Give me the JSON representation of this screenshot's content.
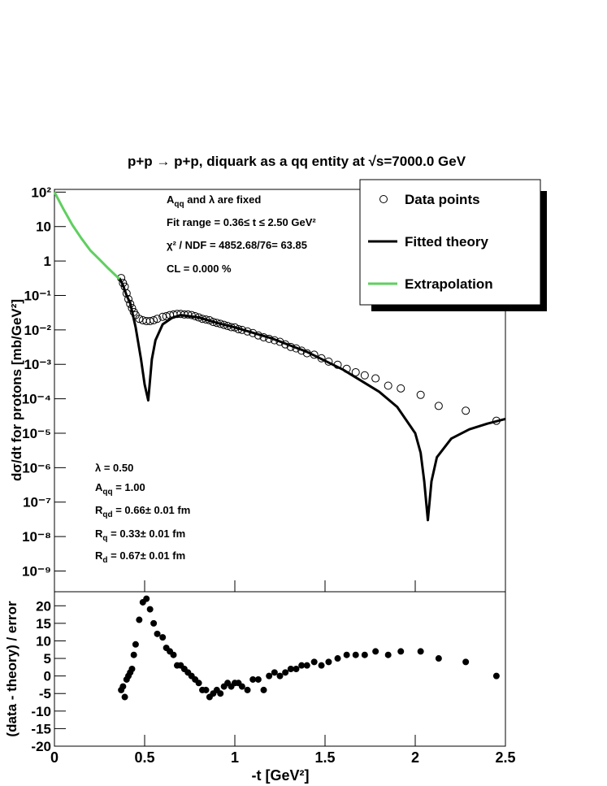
{
  "chart_data": [
    {
      "type": "line",
      "title": "p+p → p+p, diquark as a qq entity at √s=7000.0 GeV",
      "y_label": "dσ/dt for protons [mb/GeV²]",
      "log_y": true,
      "xlim": [
        0,
        2.5
      ],
      "xticks": [
        0,
        0.5,
        1,
        1.5,
        2,
        2.5
      ],
      "ylim": [
        2.5e-10,
        120
      ],
      "yticks": [
        {
          "value": 1e-09,
          "label": "10⁻⁹"
        },
        {
          "value": 1e-08,
          "label": "10⁻⁸"
        },
        {
          "value": 1e-07,
          "label": "10⁻⁷"
        },
        {
          "value": 1e-06,
          "label": "10⁻⁶"
        },
        {
          "value": 1e-05,
          "label": "10⁻⁵"
        },
        {
          "value": 0.0001,
          "label": "10⁻⁴"
        },
        {
          "value": 0.001,
          "label": "10⁻³"
        },
        {
          "value": 0.01,
          "label": "10⁻²"
        },
        {
          "value": 0.1,
          "label": "10⁻¹"
        },
        1,
        10,
        {
          "value": 100,
          "label": "10²"
        }
      ],
      "legend": "upper right",
      "series": [
        {
          "name": "Data points",
          "color": "#000000",
          "marker": "open-circle",
          "x": [
            0.37,
            0.38,
            0.39,
            0.4,
            0.41,
            0.42,
            0.43,
            0.44,
            0.45,
            0.47,
            0.49,
            0.51,
            0.53,
            0.55,
            0.57,
            0.6,
            0.62,
            0.64,
            0.66,
            0.68,
            0.7,
            0.72,
            0.74,
            0.76,
            0.78,
            0.8,
            0.82,
            0.84,
            0.86,
            0.88,
            0.9,
            0.92,
            0.94,
            0.96,
            0.98,
            1.0,
            1.02,
            1.04,
            1.07,
            1.1,
            1.13,
            1.16,
            1.19,
            1.22,
            1.25,
            1.28,
            1.31,
            1.34,
            1.37,
            1.4,
            1.44,
            1.48,
            1.52,
            1.57,
            1.62,
            1.67,
            1.72,
            1.78,
            1.85,
            1.92,
            2.03,
            2.13,
            2.28,
            2.45
          ],
          "values": [
            0.32,
            0.23,
            0.18,
            0.115,
            0.078,
            0.057,
            0.043,
            0.033,
            0.027,
            0.021,
            0.019,
            0.018,
            0.018,
            0.019,
            0.021,
            0.024,
            0.025,
            0.027,
            0.028,
            0.029,
            0.029,
            0.028,
            0.028,
            0.027,
            0.025,
            0.023,
            0.021,
            0.02,
            0.019,
            0.017,
            0.016,
            0.015,
            0.014,
            0.013,
            0.012,
            0.0118,
            0.0105,
            0.01,
            0.009,
            0.0081,
            0.0069,
            0.0061,
            0.0055,
            0.005,
            0.0045,
            0.0038,
            0.0032,
            0.0029,
            0.0025,
            0.0021,
            0.0019,
            0.0015,
            0.0012,
            0.00097,
            0.00074,
            0.00059,
            0.00048,
            0.00039,
            0.00024,
            0.0002,
            0.00013,
            6.2e-05,
            4.5e-05,
            2.3e-05
          ]
        },
        {
          "name": "Fitted theory",
          "color": "#000000",
          "x": [
            0.36,
            0.38,
            0.4,
            0.42,
            0.45,
            0.48,
            0.5,
            0.52,
            0.54,
            0.56,
            0.6,
            0.65,
            0.7,
            0.8,
            0.9,
            1.0,
            1.2,
            1.4,
            1.6,
            1.8,
            1.9,
            2.0,
            2.03,
            2.05,
            2.07,
            2.09,
            2.12,
            2.2,
            2.3,
            2.4,
            2.5
          ],
          "values": [
            0.32,
            0.2,
            0.1,
            0.06,
            0.012,
            0.0014,
            0.00026,
            9e-05,
            0.0014,
            0.005,
            0.0145,
            0.022,
            0.027,
            0.023,
            0.016,
            0.0118,
            0.0058,
            0.0023,
            0.0007,
            0.00016,
            5.8e-05,
            1e-05,
            2.7e-06,
            4e-07,
            3e-08,
            4e-07,
            2e-06,
            7e-06,
            1.3e-05,
            1.9e-05,
            2.6e-05
          ]
        },
        {
          "name": "Extrapolation",
          "color": "#5fcf5f",
          "x": [
            0,
            0.05,
            0.1,
            0.15,
            0.2,
            0.25,
            0.3,
            0.36
          ],
          "values": [
            100,
            32,
            11,
            4.5,
            2,
            1.1,
            0.6,
            0.3
          ]
        }
      ],
      "annotations": [
        [
          {
            "text": "A"
          },
          {
            "text": "qq",
            "sub": true
          },
          {
            "text": " and λ are fixed"
          }
        ],
        [
          {
            "text": "Fit range = 0.36≤ t ≤ 2.50 GeV²"
          }
        ],
        [
          {
            "text": "χ² / NDF = 4852.68/76= 63.85"
          }
        ],
        [
          {
            "text": "CL = 0.000 %"
          }
        ],
        [
          {
            "text": "λ = 0.50"
          }
        ],
        [
          {
            "text": "A"
          },
          {
            "text": "qq",
            "sub": true
          },
          {
            "text": " = 1.00"
          }
        ],
        [
          {
            "text": "R"
          },
          {
            "text": "qd",
            "sub": true
          },
          {
            "text": " = 0.66± 0.01 fm"
          }
        ],
        [
          {
            "text": "R"
          },
          {
            "text": "q",
            "sub": true
          },
          {
            "text": " = 0.33± 0.01 fm"
          }
        ],
        [
          {
            "text": "R"
          },
          {
            "text": "d",
            "sub": true
          },
          {
            "text": " = 0.67± 0.01 fm"
          }
        ]
      ]
    },
    {
      "type": "scatter",
      "x_label": "-t [GeV²]",
      "y_label": "(data - theory) / error",
      "xlim": [
        0,
        2.5
      ],
      "xticks": [
        0,
        0.5,
        1,
        1.5,
        2,
        2.5
      ],
      "ylim": [
        -20,
        24
      ],
      "yticks": [
        -20,
        -15,
        -10,
        -5,
        0,
        5,
        10,
        15,
        20
      ],
      "series": [
        {
          "color": "#000000",
          "marker": "filled-circle",
          "x": [
            0.37,
            0.38,
            0.39,
            0.4,
            0.41,
            0.42,
            0.43,
            0.44,
            0.45,
            0.47,
            0.49,
            0.51,
            0.53,
            0.55,
            0.57,
            0.6,
            0.62,
            0.64,
            0.66,
            0.68,
            0.7,
            0.72,
            0.74,
            0.76,
            0.78,
            0.8,
            0.82,
            0.84,
            0.86,
            0.88,
            0.9,
            0.92,
            0.94,
            0.96,
            0.98,
            1.0,
            1.02,
            1.04,
            1.07,
            1.1,
            1.13,
            1.16,
            1.19,
            1.22,
            1.25,
            1.28,
            1.31,
            1.34,
            1.37,
            1.4,
            1.44,
            1.48,
            1.52,
            1.57,
            1.62,
            1.67,
            1.72,
            1.78,
            1.85,
            1.92,
            2.03,
            2.13,
            2.28,
            2.45
          ],
          "values": [
            -4,
            -3,
            -6,
            -1,
            0,
            1,
            2,
            6,
            9,
            16,
            21,
            22,
            19,
            15,
            12,
            11,
            8,
            7,
            6,
            3,
            3,
            2,
            1,
            0,
            -1,
            -2,
            -4,
            -4,
            -6,
            -5,
            -4,
            -5,
            -3,
            -2,
            -3,
            -2,
            -2,
            -3,
            -4,
            -1,
            -1,
            -4,
            0,
            1,
            0,
            1,
            2,
            2,
            3,
            3,
            4,
            3,
            4,
            5,
            6,
            6,
            6,
            7,
            6,
            7,
            7,
            5,
            4,
            0
          ]
        }
      ]
    }
  ]
}
